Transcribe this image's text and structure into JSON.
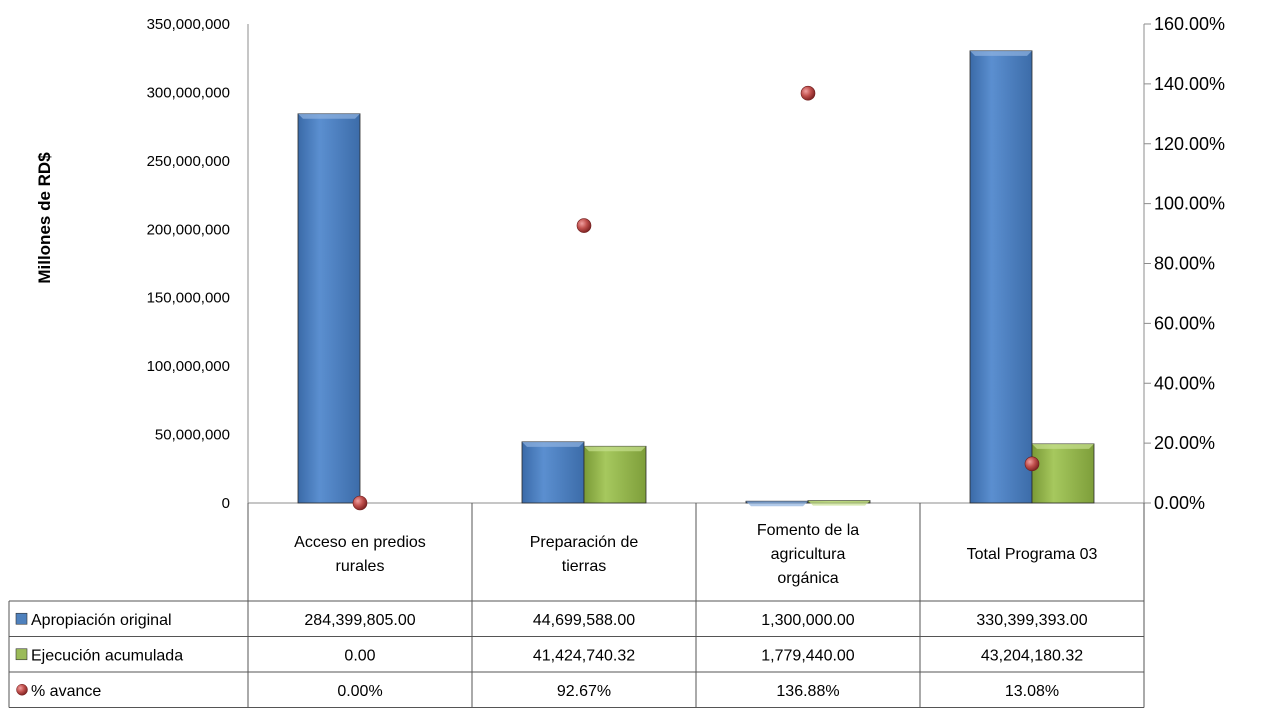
{
  "chart_data": {
    "type": "bar",
    "title": "",
    "ylabel": "Millones de RD$",
    "ylim": [
      0,
      350000000
    ],
    "y2lim": [
      0,
      160
    ],
    "y_ticks": [
      "0",
      "50,000,000",
      "100,000,000",
      "150,000,000",
      "200,000,000",
      "250,000,000",
      "300,000,000",
      "350,000,000"
    ],
    "y2_ticks": [
      "0.00%",
      "20.00%",
      "40.00%",
      "60.00%",
      "80.00%",
      "100.00%",
      "120.00%",
      "140.00%",
      "160.00%"
    ],
    "categories": [
      [
        "Acceso en predios",
        "rurales"
      ],
      [
        "Preparación de",
        "tierras"
      ],
      [
        "Fomento de la",
        "agricultura",
        "orgánica"
      ],
      [
        "Total Programa 03"
      ]
    ],
    "series": [
      {
        "name": "Apropiación original",
        "kind": "bar",
        "axis": "left",
        "color": "#4f81bd",
        "values": [
          284399805,
          44699588,
          1300000,
          330399393
        ],
        "labels": [
          "284,399,805.00",
          "44,699,588.00",
          "1,300,000.00",
          "330,399,393.00"
        ]
      },
      {
        "name": "Ejecución acumulada",
        "kind": "bar",
        "axis": "left",
        "color": "#9bbb59",
        "values": [
          0,
          41424740.32,
          1779440,
          43204180.32
        ],
        "labels": [
          "0.00",
          "41,424,740.32",
          "1,779,440.00",
          "43,204,180.32"
        ]
      },
      {
        "name": "% avance",
        "kind": "point",
        "axis": "right",
        "color": "#c0504d",
        "values": [
          0,
          92.67,
          136.88,
          13.08
        ],
        "labels": [
          "0.00%",
          "92.67%",
          "136.88%",
          "13.08%"
        ]
      }
    ],
    "legend": "data table"
  }
}
